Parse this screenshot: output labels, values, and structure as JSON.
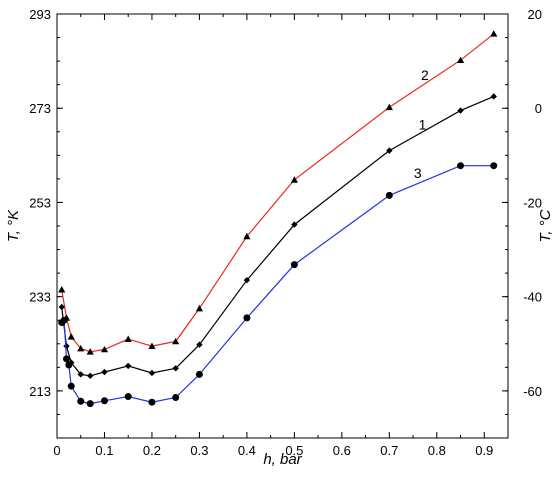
{
  "chart_data": {
    "type": "line",
    "title": "",
    "xlabel": "h, bar",
    "ylabel": "T, °K",
    "ylabel_right": "T, °C",
    "xlim": [
      0,
      0.95
    ],
    "ylim": [
      203,
      293
    ],
    "ylim_right": [
      -70,
      20
    ],
    "x_ticks": [
      0,
      0.1,
      0.2,
      0.3,
      0.4,
      0.5,
      0.6,
      0.7,
      0.8,
      0.9
    ],
    "x_tick_labels": [
      "0",
      "0.1",
      "0.2",
      "0.3",
      "0.4",
      "0.5",
      "0.6",
      "0.7",
      "0.8",
      "0.9"
    ],
    "y_ticks": [
      213,
      233,
      253,
      273,
      293
    ],
    "y_tick_labels": [
      "213",
      "233",
      "253",
      "273",
      "293"
    ],
    "y_right_ticks": [
      -60,
      -40,
      -20,
      0,
      20
    ],
    "y_right_tick_labels": [
      "-60",
      "-40",
      "-20",
      "0",
      "20"
    ],
    "grid": false,
    "legend": "inline labels",
    "series": [
      {
        "name": "2",
        "color": "#e8291c",
        "marker": "triangle",
        "x": [
          0.01,
          0.02,
          0.03,
          0.05,
          0.07,
          0.1,
          0.15,
          0.2,
          0.25,
          0.3,
          0.4,
          0.5,
          0.7,
          0.85,
          0.92
        ],
        "values": [
          234.5,
          228.5,
          224.5,
          222.0,
          221.3,
          221.8,
          224.0,
          222.5,
          223.5,
          230.5,
          245.8,
          257.8,
          273.2,
          283.2,
          288.8
        ]
      },
      {
        "name": "1",
        "color": "#000000",
        "marker": "diamond",
        "x": [
          0.01,
          0.02,
          0.03,
          0.05,
          0.07,
          0.1,
          0.15,
          0.2,
          0.25,
          0.3,
          0.4,
          0.5,
          0.7,
          0.85,
          0.92
        ],
        "values": [
          230.8,
          222.5,
          219.0,
          216.5,
          216.2,
          217.0,
          218.3,
          216.8,
          217.8,
          222.8,
          236.5,
          248.3,
          264.0,
          272.5,
          275.5
        ]
      },
      {
        "name": "3",
        "color": "#1f35e0",
        "marker": "circle",
        "x": [
          0.01,
          0.015,
          0.02,
          0.025,
          0.03,
          0.05,
          0.07,
          0.1,
          0.15,
          0.2,
          0.25,
          0.3,
          0.4,
          0.5,
          0.7,
          0.85,
          0.92
        ],
        "values": [
          227.5,
          228.0,
          219.8,
          218.5,
          214.0,
          210.8,
          210.3,
          210.9,
          211.8,
          210.6,
          211.6,
          216.5,
          228.5,
          239.8,
          254.5,
          260.8,
          260.8
        ]
      }
    ],
    "series_label_anchors": [
      {
        "name": "2",
        "x": 0.775,
        "y": 279.0
      },
      {
        "name": "1",
        "x": 0.77,
        "y": 268.5
      },
      {
        "name": "3",
        "x": 0.76,
        "y": 258.2
      }
    ]
  }
}
